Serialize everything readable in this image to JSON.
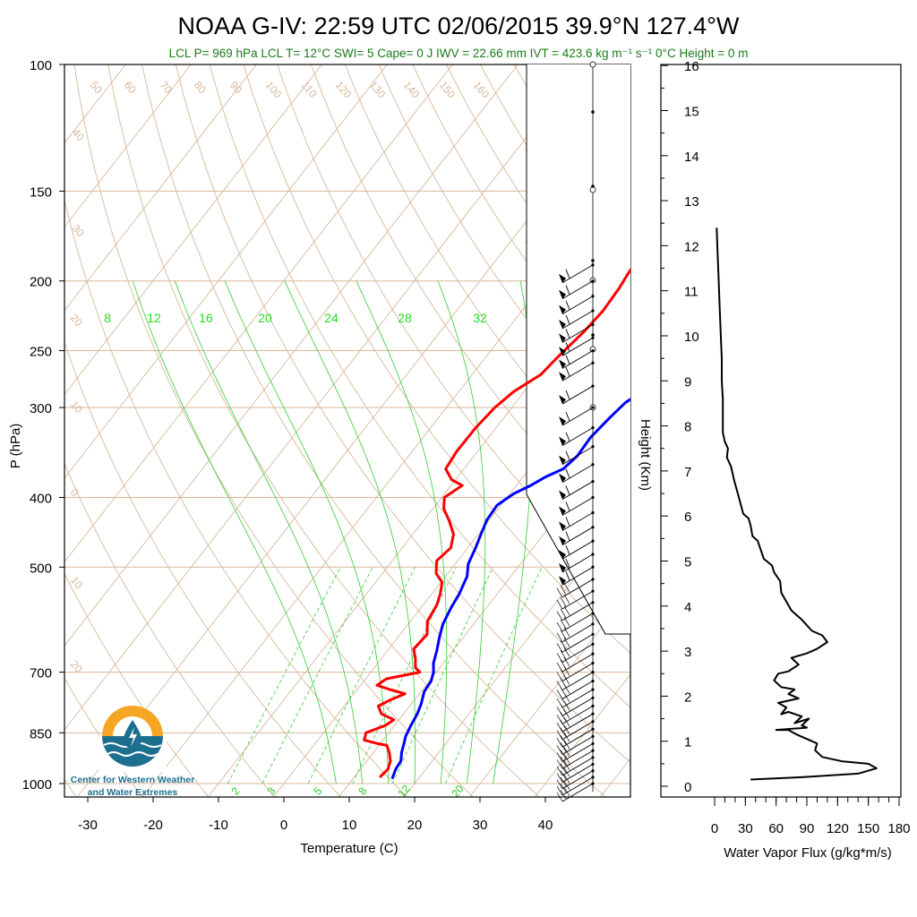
{
  "title": "NOAA G-IV: 22:59 UTC 02/06/2015  39.9°N 127.4°W",
  "subtitle": "LCL P= 969 hPa  LCL T= 12°C  SWI= 5  Cape= 0 J  IWV = 22.66 mm  IVT = 423.6 kg m⁻¹ s⁻¹  0°C Height = 0 m",
  "logo": {
    "line1": "Center for Western Weather",
    "line2": "and Water Extremes"
  },
  "colors": {
    "temperature": "#ff0000",
    "dewpoint": "#0000ff",
    "dry_adiabat": "#d8b89a",
    "mixing_ratio": "#33cc33",
    "isotherm": "#d8b89a",
    "logo_orange": "#f5a623",
    "logo_blue": "#1d6f8f"
  },
  "chart_data": [
    {
      "type": "line",
      "name": "skewt",
      "xlabel": "Temperature (C)",
      "ylabel": "P (hPa)",
      "xlim": [
        -35,
        52
      ],
      "ylim": [
        1000,
        100
      ],
      "yscale": "log",
      "pressure_ticks": [
        100,
        150,
        200,
        250,
        300,
        400,
        500,
        700,
        850,
        1000
      ],
      "temp_ticks": [
        -30,
        -20,
        -10,
        0,
        10,
        20,
        30,
        40
      ],
      "theta_labels": [
        "50",
        "60",
        "70",
        "80",
        "90",
        "100",
        "110",
        "120",
        "130",
        "140",
        "150",
        "160",
        "40",
        "30",
        "20",
        "10",
        "0",
        "10",
        "20"
      ],
      "mixing_ratio_labels": [
        "8",
        "12",
        "16",
        "20",
        "24",
        "28",
        "32"
      ],
      "mixing_ratio_labels_bottom": [
        "2",
        "3",
        "5",
        "8",
        "12",
        "20"
      ],
      "isotherm_side_labels": [
        "30",
        "20",
        "10",
        "0",
        "10",
        "20",
        "30"
      ],
      "series": [
        {
          "name": "Temperature",
          "points": [
            [
              13.9,
              980
            ],
            [
              14.2,
              955
            ],
            [
              13.6,
              930
            ],
            [
              12.4,
              905
            ],
            [
              11.2,
              885
            ],
            [
              9.6,
              880
            ],
            [
              7.1,
              870
            ],
            [
              6.5,
              850
            ],
            [
              8.6,
              830
            ],
            [
              9.2,
              815
            ],
            [
              6.6,
              800
            ],
            [
              5.2,
              780
            ],
            [
              6.3,
              765
            ],
            [
              7.8,
              750
            ],
            [
              5.0,
              740
            ],
            [
              2.5,
              730
            ],
            [
              3.2,
              715
            ],
            [
              7.5,
              700
            ],
            [
              6.3,
              690
            ],
            [
              5.2,
              670
            ],
            [
              3.8,
              650
            ],
            [
              4.1,
              620
            ],
            [
              2.6,
              595
            ],
            [
              2.1,
              565
            ],
            [
              1.3,
              545
            ],
            [
              0.2,
              525
            ],
            [
              -1.8,
              510
            ],
            [
              -3.2,
              490
            ],
            [
              -2.6,
              470
            ],
            [
              -3.8,
              450
            ],
            [
              -6.2,
              430
            ],
            [
              -8.3,
              415
            ],
            [
              -9.6,
              400
            ],
            [
              -8.3,
              385
            ],
            [
              -10.6,
              378
            ],
            [
              -12.8,
              365
            ],
            [
              -13.2,
              345
            ],
            [
              -13.1,
              320
            ],
            [
              -12.6,
              300
            ],
            [
              -11.6,
              285
            ],
            [
              -9.5,
              270
            ],
            [
              -9.0,
              255
            ],
            [
              -8.0,
              235
            ],
            [
              -7.6,
              220
            ],
            [
              -7.8,
              205
            ],
            [
              -8.2,
              195
            ],
            [
              -8.5,
              185
            ]
          ]
        },
        {
          "name": "Dewpoint",
          "points": [
            [
              16.0,
              985
            ],
            [
              15.4,
              955
            ],
            [
              15.2,
              930
            ],
            [
              14.3,
              905
            ],
            [
              13.6,
              880
            ],
            [
              13.0,
              860
            ],
            [
              12.5,
              830
            ],
            [
              12.1,
              800
            ],
            [
              11.5,
              775
            ],
            [
              10.5,
              745
            ],
            [
              10.3,
              720
            ],
            [
              9.6,
              700
            ],
            [
              8.5,
              680
            ],
            [
              7.6,
              655
            ],
            [
              6.3,
              625
            ],
            [
              5.3,
              600
            ],
            [
              4.6,
              570
            ],
            [
              4.2,
              545
            ],
            [
              3.3,
              515
            ],
            [
              2.0,
              495
            ],
            [
              1.2,
              470
            ],
            [
              0.4,
              450
            ],
            [
              -0.4,
              430
            ],
            [
              -0.6,
              410
            ],
            [
              0.6,
              395
            ],
            [
              2.2,
              385
            ],
            [
              3.4,
              375
            ],
            [
              5.2,
              365
            ],
            [
              5.8,
              350
            ],
            [
              5.6,
              330
            ],
            [
              6.2,
              310
            ],
            [
              6.8,
              295
            ],
            [
              8.1,
              285
            ],
            [
              10.0,
              275
            ],
            [
              11.2,
              265
            ],
            [
              11.4,
              250
            ],
            [
              11.3,
              235
            ],
            [
              11.5,
              220
            ],
            [
              11.2,
              208
            ],
            [
              10.4,
              200
            ],
            [
              10.1,
              192
            ],
            [
              9.9,
              185
            ]
          ]
        }
      ],
      "wind_barbs_pressure": [
        1000,
        980,
        960,
        940,
        920,
        900,
        880,
        860,
        840,
        820,
        800,
        780,
        760,
        740,
        720,
        700,
        680,
        660,
        640,
        620,
        600,
        580,
        560,
        540,
        520,
        500,
        480,
        460,
        440,
        420,
        400,
        380,
        360,
        340,
        320,
        300,
        280,
        260,
        250,
        240,
        230,
        220,
        210,
        200,
        190
      ],
      "height_ticks_km": [
        0,
        1,
        2,
        3,
        4,
        5,
        6,
        7,
        8,
        9,
        10,
        11,
        12,
        13,
        14,
        15,
        16
      ],
      "height_label": "Height (Km)"
    },
    {
      "type": "line",
      "name": "water_vapor_flux",
      "xlabel": "Water Vapor Flux (g/kg*m/s)",
      "xlim": [
        0,
        180
      ],
      "ylim": [
        0,
        16.5
      ],
      "x_ticks": [
        0,
        30,
        60,
        90,
        120,
        150,
        180
      ],
      "points": [
        [
          35,
          0.15
        ],
        [
          85,
          0.2
        ],
        [
          140,
          0.28
        ],
        [
          158,
          0.4
        ],
        [
          150,
          0.5
        ],
        [
          125,
          0.55
        ],
        [
          105,
          0.65
        ],
        [
          98,
          0.8
        ],
        [
          100,
          0.95
        ],
        [
          90,
          1.05
        ],
        [
          80,
          1.15
        ],
        [
          72,
          1.25
        ],
        [
          60,
          1.25
        ],
        [
          90,
          1.3
        ],
        [
          85,
          1.35
        ],
        [
          92,
          1.5
        ],
        [
          78,
          1.4
        ],
        [
          85,
          1.55
        ],
        [
          72,
          1.65
        ],
        [
          65,
          1.6
        ],
        [
          70,
          1.75
        ],
        [
          62,
          1.85
        ],
        [
          82,
          1.95
        ],
        [
          72,
          2.05
        ],
        [
          78,
          2.15
        ],
        [
          65,
          2.2
        ],
        [
          58,
          2.35
        ],
        [
          62,
          2.5
        ],
        [
          72,
          2.55
        ],
        [
          82,
          2.7
        ],
        [
          75,
          2.85
        ],
        [
          90,
          2.95
        ],
        [
          100,
          3.05
        ],
        [
          110,
          3.2
        ],
        [
          105,
          3.35
        ],
        [
          95,
          3.45
        ],
        [
          85,
          3.7
        ],
        [
          75,
          3.9
        ],
        [
          70,
          4.1
        ],
        [
          65,
          4.3
        ],
        [
          64,
          4.55
        ],
        [
          58,
          4.75
        ],
        [
          56,
          4.9
        ],
        [
          48,
          5.05
        ],
        [
          45,
          5.25
        ],
        [
          42,
          5.45
        ],
        [
          37,
          5.55
        ],
        [
          35,
          5.8
        ],
        [
          33,
          5.95
        ],
        [
          28,
          6.05
        ],
        [
          25,
          6.3
        ],
        [
          22,
          6.55
        ],
        [
          19,
          6.8
        ],
        [
          16,
          7.1
        ],
        [
          12,
          7.3
        ],
        [
          13,
          7.5
        ],
        [
          10,
          7.65
        ],
        [
          8,
          7.85
        ],
        [
          8,
          8.2
        ],
        [
          8,
          8.6
        ],
        [
          7,
          9.0
        ],
        [
          7,
          9.5
        ],
        [
          6,
          10.0
        ],
        [
          5,
          10.6
        ],
        [
          4,
          11.2
        ],
        [
          3,
          11.8
        ],
        [
          2,
          12.4
        ]
      ]
    }
  ]
}
